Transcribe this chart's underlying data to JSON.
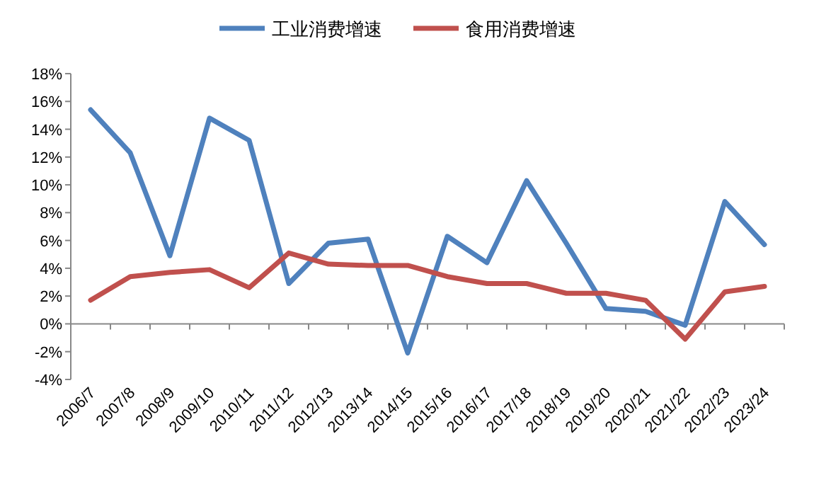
{
  "chart_data": {
    "type": "line",
    "categories": [
      "2006/7",
      "2007/8",
      "2008/9",
      "2009/10",
      "2010/11",
      "2011/12",
      "2012/13",
      "2013/14",
      "2014/15",
      "2015/16",
      "2016/17",
      "2017/18",
      "2018/19",
      "2019/20",
      "2020/21",
      "2021/22",
      "2022/23",
      "2023/24"
    ],
    "series": [
      {
        "name": "工业消费增速",
        "color": "#4f81bd",
        "values": [
          15.4,
          12.3,
          4.9,
          14.8,
          13.2,
          2.9,
          5.8,
          6.1,
          -2.1,
          6.3,
          4.4,
          10.3,
          5.8,
          1.1,
          0.9,
          -0.1,
          8.8,
          5.7
        ]
      },
      {
        "name": "食用消费增速",
        "color": "#c0504d",
        "values": [
          1.7,
          3.4,
          3.7,
          3.9,
          2.6,
          5.1,
          4.3,
          4.2,
          4.2,
          3.4,
          2.9,
          2.9,
          2.2,
          2.2,
          1.7,
          -1.1,
          2.3,
          2.7
        ]
      }
    ],
    "ylim": [
      -4,
      18
    ],
    "yticks": [
      {
        "value": -4,
        "label": "-4%"
      },
      {
        "value": -2,
        "label": "-2%"
      },
      {
        "value": 0,
        "label": "0%"
      },
      {
        "value": 2,
        "label": "2%"
      },
      {
        "value": 4,
        "label": "4%"
      },
      {
        "value": 6,
        "label": "6%"
      },
      {
        "value": 8,
        "label": "8%"
      },
      {
        "value": 10,
        "label": "10%"
      },
      {
        "value": 12,
        "label": "12%"
      },
      {
        "value": 14,
        "label": "14%"
      },
      {
        "value": 16,
        "label": "16%"
      },
      {
        "value": 18,
        "label": "18%"
      }
    ],
    "legend": "top",
    "marker": "none",
    "line_style": "solid"
  }
}
